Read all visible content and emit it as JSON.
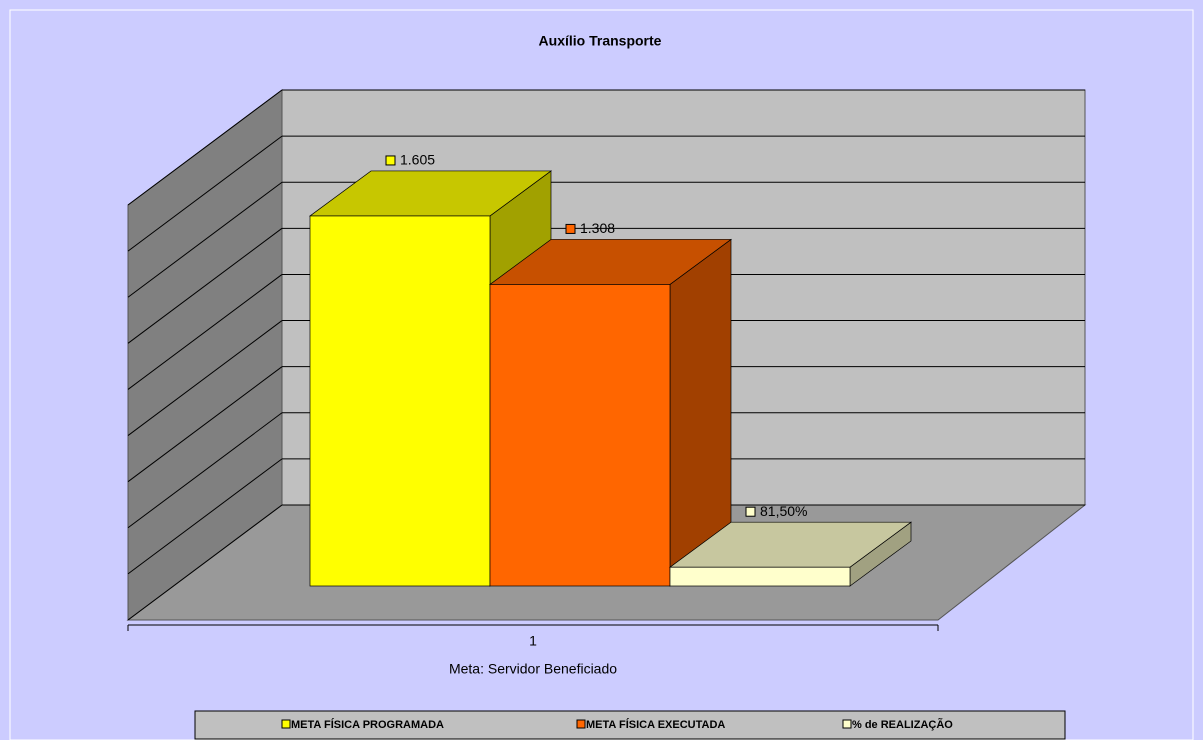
{
  "chart_data": {
    "type": "bar3d",
    "title": "Auxílio Transporte",
    "categories": [
      "1"
    ],
    "x_label": "Meta: Servidor Beneficiado",
    "ylim": [
      0,
      1800
    ],
    "yticks": [
      0,
      200,
      400,
      600,
      800,
      1000,
      1200,
      1400,
      1600,
      1800
    ],
    "grid": true,
    "legend": "bottom",
    "series": [
      {
        "name": "META FÍSICA PROGRAMADA",
        "color": "#ffff00",
        "values": [
          1605
        ],
        "value_labels": [
          "1.605"
        ]
      },
      {
        "name": "META FÍSICA EXECUTADA",
        "color": "#ff6600",
        "values": [
          1308
        ],
        "value_labels": [
          "1.308"
        ]
      },
      {
        "name": "% de REALIZAÇÃO",
        "color": "#ffffcc",
        "values": [
          81.5
        ],
        "value_labels": [
          "81,50%"
        ]
      }
    ]
  }
}
